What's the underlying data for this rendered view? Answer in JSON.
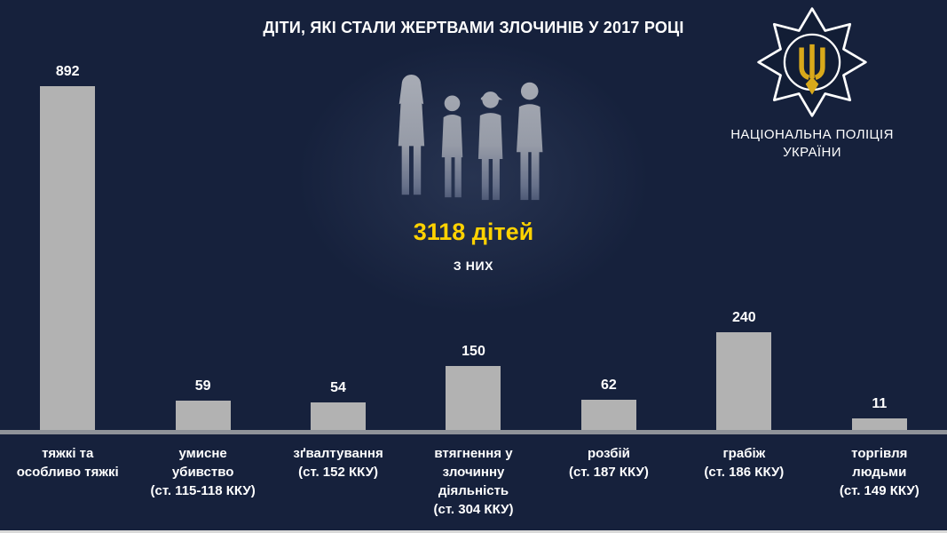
{
  "header": {
    "title": "ДІТИ, ЯКІ СТАЛИ ЖЕРТВАМИ ЗЛОЧИНІВ У 2017 РОЦІ"
  },
  "logo": {
    "line1": "НАЦІОНАЛЬНА ПОЛІЦІЯ",
    "line2": "УКРАЇНИ",
    "badge_icon": "national-police-of-ukraine-badge"
  },
  "center": {
    "total": "3118 дітей",
    "subtitle": "З НИХ",
    "silhouettes_icon": "four-children-silhouettes"
  },
  "colors": {
    "background": "#16213c",
    "bar": "#b2b2b2",
    "accent_yellow": "#ffd200",
    "text": "#ffffff",
    "baseline": "#8f9399",
    "trident_gold": "#d9a91a"
  },
  "chart_data": {
    "type": "bar",
    "title": "ДІТИ, ЯКІ СТАЛИ ЖЕРТВАМИ ЗЛОЧИНІВ У 2017 РОЦІ",
    "total_annotation": "3118 дітей",
    "subtitle_annotation": "З НИХ",
    "categories": [
      "тяжкі та особливо тяжкі",
      "умисне убивство (ст. 115-118 ККУ)",
      "зґвалтування (ст. 152 ККУ)",
      "втягнення у злочинну діяльність (ст. 304 ККУ)",
      "розбій (ст. 187 ККУ)",
      "грабіж (ст. 186 ККУ)",
      "торгівля людьми (ст. 149 ККУ)"
    ],
    "category_lines": [
      [
        "тяжкі та",
        "особливо тяжкі"
      ],
      [
        "умисне",
        "убивство",
        "(ст. 115-118 ККУ)"
      ],
      [
        "зґвалтування",
        "(ст. 152 ККУ)"
      ],
      [
        "втягнення у",
        "злочинну",
        "діяльність",
        "(ст. 304 ККУ)"
      ],
      [
        "розбій",
        "(ст. 187 ККУ)"
      ],
      [
        "грабіж",
        "(ст. 186 ККУ)"
      ],
      [
        "торгівля",
        "людьми",
        "(ст. 149 ККУ)"
      ]
    ],
    "values": [
      892,
      59,
      54,
      150,
      62,
      240,
      11
    ],
    "ylim": [
      0,
      900
    ],
    "grid": false,
    "legend": false,
    "bar_color": "#b2b2b2",
    "value_label_color": "#ffffff"
  }
}
